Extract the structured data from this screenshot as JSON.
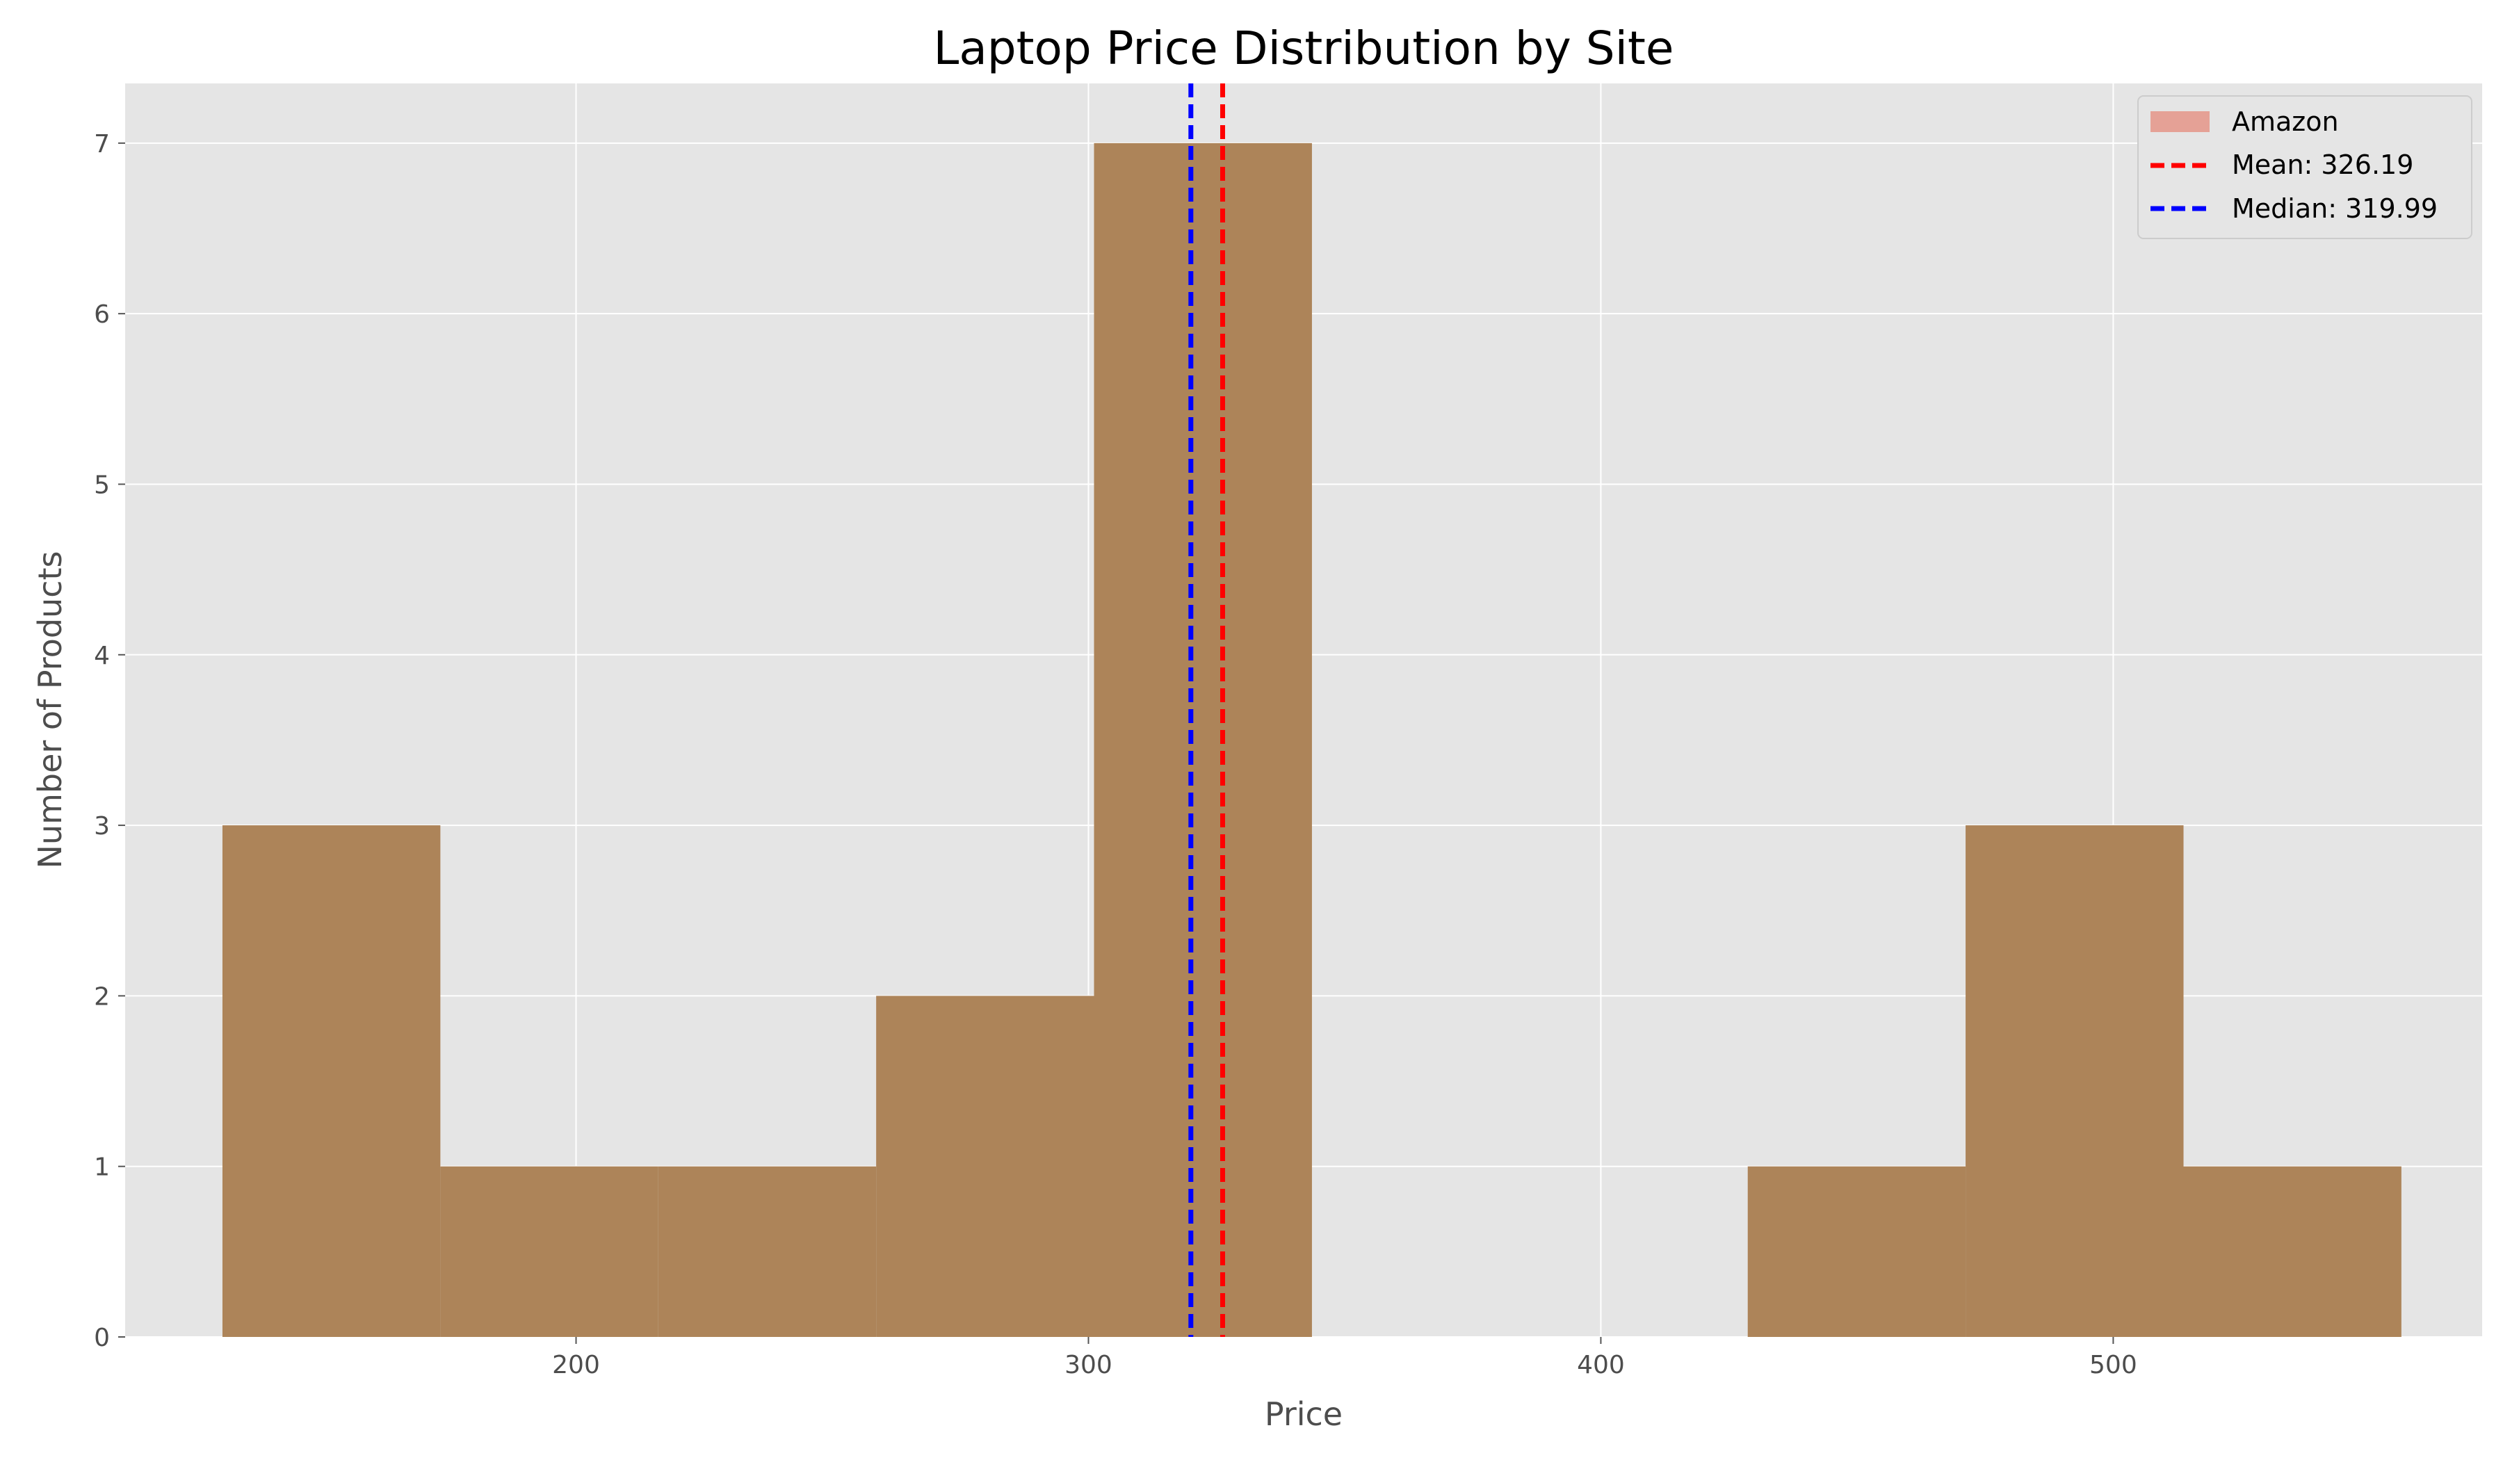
{
  "chart_data": {
    "type": "bar",
    "title": "Laptop Price Distribution by Site",
    "xlabel": "Price",
    "ylabel": "Number of Products",
    "xlim": [
      112,
      572
    ],
    "ylim": [
      0,
      7.35
    ],
    "xticks": [
      200,
      300,
      400,
      500
    ],
    "yticks": [
      0,
      1,
      2,
      3,
      4,
      5,
      6,
      7
    ],
    "grid": true,
    "legend_position": "top-right",
    "series": [
      {
        "name": "Amazon",
        "color": "#ad8459",
        "legend_color": "#e5a196",
        "bin_edges": [
          130.99,
          173.52,
          216.04,
          258.57,
          301.09,
          343.62,
          386.14,
          428.67,
          471.19,
          513.72,
          556.24
        ],
        "counts": [
          3,
          1,
          1,
          2,
          7,
          0,
          0,
          1,
          3,
          1
        ]
      }
    ],
    "reference_lines": [
      {
        "name": "Mean",
        "label": "Mean: 326.19",
        "value": 326.19,
        "color": "#ff0000",
        "style": "dashed"
      },
      {
        "name": "Median",
        "label": "Median: 319.99",
        "value": 319.99,
        "color": "#0000ff",
        "style": "dashed"
      }
    ]
  }
}
